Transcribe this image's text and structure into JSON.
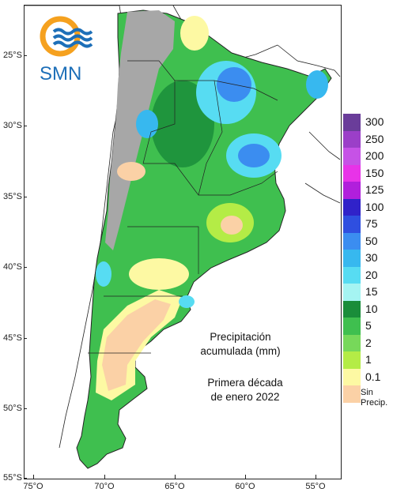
{
  "logo": {
    "text": "SMN"
  },
  "axes": {
    "latitudes": [
      {
        "label": "25°S",
        "value": -25
      },
      {
        "label": "30°S",
        "value": -30
      },
      {
        "label": "35°S",
        "value": -35
      },
      {
        "label": "40°S",
        "value": -40
      },
      {
        "label": "45°S",
        "value": -45
      },
      {
        "label": "50°S",
        "value": -50
      },
      {
        "label": "55°S",
        "value": -55
      }
    ],
    "longitudes": [
      {
        "label": "75°O",
        "value": -75
      },
      {
        "label": "70°O",
        "value": -70
      },
      {
        "label": "65°O",
        "value": -65
      },
      {
        "label": "60°O",
        "value": -60
      },
      {
        "label": "55°O",
        "value": -55
      }
    ]
  },
  "annotation": {
    "line1": "Precipitación",
    "line2": "acumulada (mm)",
    "line3": "Primera década",
    "line4": "de enero 2022"
  },
  "legend": {
    "items": [
      {
        "label": "300",
        "color": "#6a3d9a"
      },
      {
        "label": "250",
        "color": "#9b3fc8"
      },
      {
        "label": "200",
        "color": "#c652e6"
      },
      {
        "label": "150",
        "color": "#e833e8"
      },
      {
        "label": "125",
        "color": "#b11fdc"
      },
      {
        "label": "100",
        "color": "#3022c9"
      },
      {
        "label": "75",
        "color": "#2f4fe0"
      },
      {
        "label": "50",
        "color": "#3b8df0"
      },
      {
        "label": "30",
        "color": "#37b8ef"
      },
      {
        "label": "20",
        "color": "#57dcf2"
      },
      {
        "label": "15",
        "color": "#a5f4f2"
      },
      {
        "label": "10",
        "color": "#1a8d3a"
      },
      {
        "label": "5",
        "color": "#3fbf4f"
      },
      {
        "label": "2",
        "color": "#77d85a"
      },
      {
        "label": "1",
        "color": "#b4ec46"
      },
      {
        "label": "0.1",
        "color": "#fdf9a3"
      },
      {
        "label": "Sin",
        "label2": "Precip.",
        "color": "#fbd1a6"
      }
    ]
  },
  "colors": {
    "andes_gray": "#a7a7a7",
    "border": "#222222",
    "logo_orange": "#f5a11f",
    "logo_blue": "#1d6fb8"
  }
}
